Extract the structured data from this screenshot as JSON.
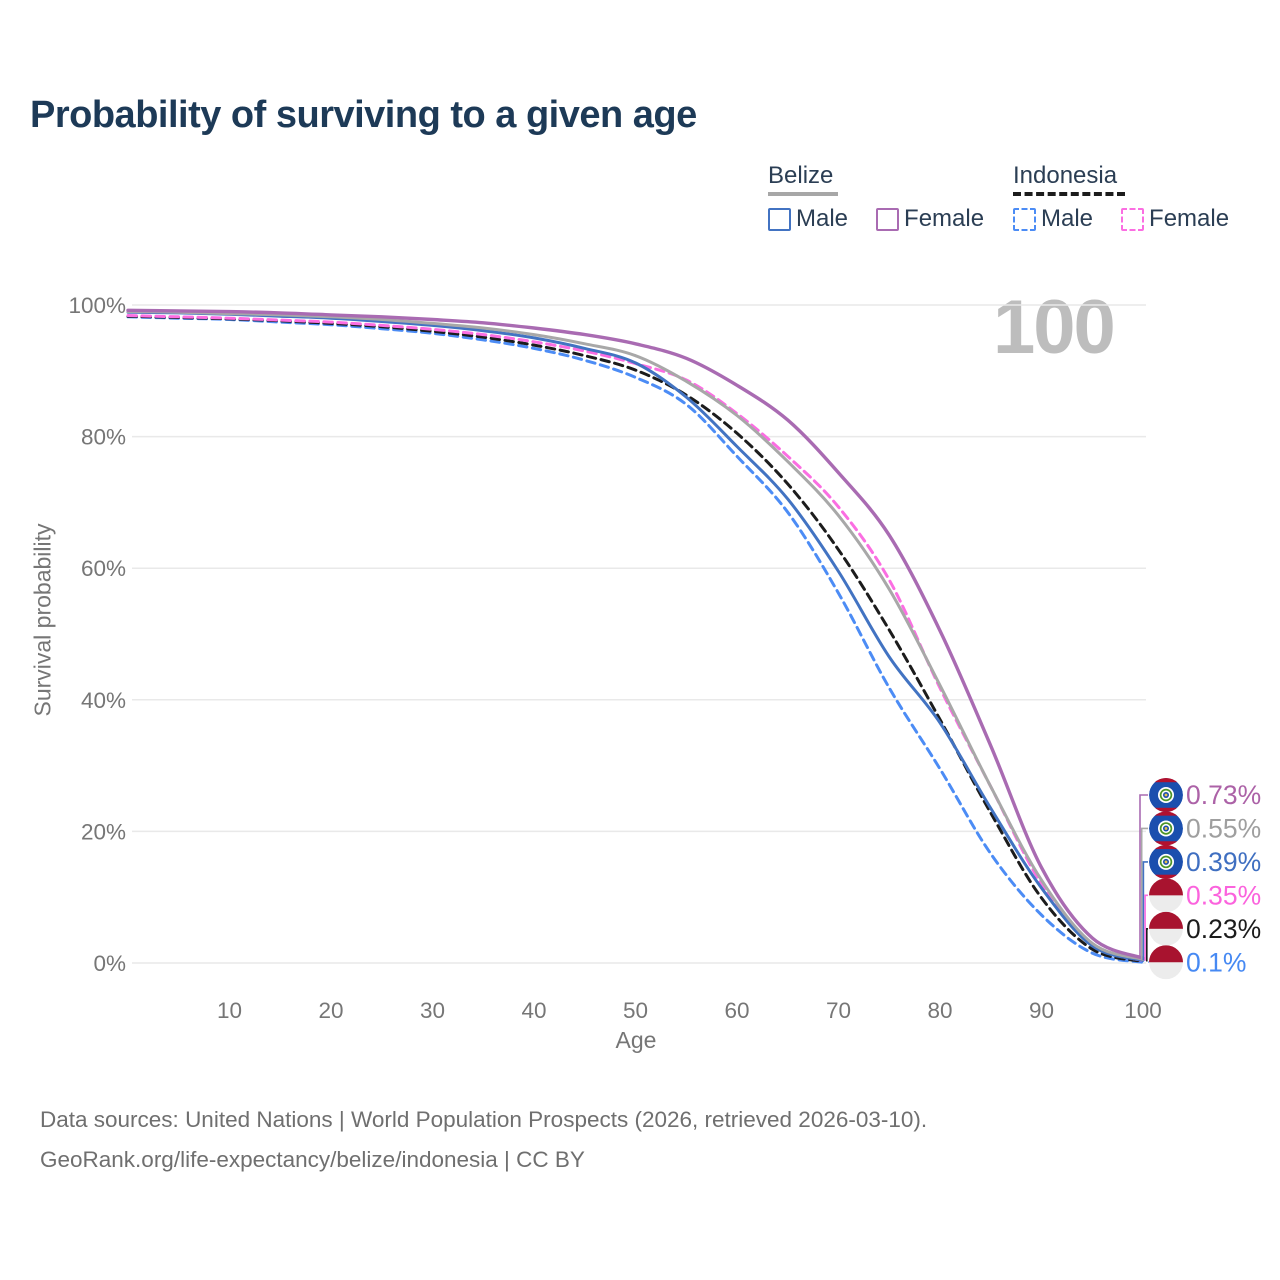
{
  "title": "Probability of surviving to a given age",
  "watermark": {
    "text": "100"
  },
  "colors": {
    "title": "#1d3a57",
    "legend": "#2b3e54",
    "ink": "#1c1c1c",
    "axis": "#767676",
    "grid": "#e9e9e9",
    "watermark": "#bdbdbd",
    "footer": "#6f6f6f",
    "belize_flag_blue": "#1b4fae",
    "belize_flag_red": "#b3112e",
    "belize_flag_green": "#4c9427",
    "indonesia_flag_red": "#a8132f",
    "indonesia_flag_white": "#ececec"
  },
  "legend": {
    "groups": [
      {
        "name": "Belize",
        "line_style": "solid",
        "underline_color": "#a7a7a7",
        "items": [
          {
            "label": "Male",
            "color": "#4273c2",
            "dashed": false
          },
          {
            "label": "Female",
            "color": "#a96bb2",
            "dashed": false
          }
        ]
      },
      {
        "name": "Indonesia",
        "line_style": "dashed",
        "underline_color": "#1c1c1c",
        "items": [
          {
            "label": "Male",
            "color": "#4c8cf5",
            "dashed": true
          },
          {
            "label": "Female",
            "color": "#fb6ee2",
            "dashed": true
          }
        ]
      }
    ]
  },
  "chart_data": {
    "type": "line",
    "title": "Probability of surviving to a given age",
    "xlabel": "Age",
    "ylabel": "Survival probability",
    "xlim": [
      0,
      100
    ],
    "ylim": [
      0,
      100
    ],
    "grid": "horizontal",
    "x_ticks": [
      10,
      20,
      30,
      40,
      50,
      60,
      70,
      80,
      90,
      100
    ],
    "y_ticks_pct": [
      0,
      20,
      40,
      60,
      80,
      100
    ],
    "ages": [
      0,
      5,
      10,
      15,
      20,
      25,
      30,
      35,
      40,
      45,
      50,
      55,
      60,
      65,
      70,
      75,
      80,
      85,
      90,
      95,
      100
    ],
    "series": [
      {
        "name": "Belize Female",
        "country": "Belize",
        "sex": "Female",
        "color": "#a96bb2",
        "dashed": false,
        "width": 3.4,
        "end_label": "0.73%",
        "label_color": "#ac62a7",
        "label_slot": 0,
        "values": [
          99.2,
          99.1,
          99.0,
          98.8,
          98.5,
          98.2,
          97.8,
          97.3,
          96.5,
          95.5,
          94.1,
          91.9,
          87.8,
          82.5,
          74.5,
          65.0,
          50.5,
          33.0,
          14.5,
          3.8,
          0.73
        ]
      },
      {
        "name": "Belize All",
        "country": "Belize",
        "sex": "All",
        "color": "#a8a8a8",
        "dashed": false,
        "width": 3,
        "end_label": "0.55%",
        "label_color": "#9f9f9f",
        "label_slot": 1,
        "values": [
          99.0,
          98.9,
          98.7,
          98.5,
          98.2,
          97.8,
          97.2,
          96.5,
          95.5,
          94.1,
          92.3,
          88.4,
          83.2,
          76.2,
          68.0,
          56.8,
          42.2,
          26.8,
          12.6,
          3.0,
          0.55
        ]
      },
      {
        "name": "Belize Male",
        "country": "Belize",
        "sex": "Male",
        "color": "#4273c2",
        "dashed": false,
        "width": 3,
        "end_label": "0.39%",
        "label_color": "#3f6fc1",
        "label_slot": 2,
        "values": [
          98.9,
          98.8,
          98.6,
          98.3,
          98.0,
          97.5,
          96.9,
          96.1,
          95.0,
          93.4,
          91.2,
          86.0,
          78.5,
          70.5,
          59.5,
          46.5,
          36.5,
          23.5,
          11.4,
          2.6,
          0.39
        ]
      },
      {
        "name": "Indonesia Female",
        "country": "Indonesia",
        "sex": "Female",
        "color": "#fb6ee2",
        "dashed": true,
        "width": 3,
        "end_label": "0.35%",
        "label_color": "#fb63dd",
        "label_slot": 3,
        "values": [
          98.4,
          98.2,
          98.0,
          97.7,
          97.4,
          96.9,
          96.3,
          95.5,
          94.4,
          93.0,
          91.1,
          88.6,
          83.5,
          77.0,
          69.3,
          58.2,
          41.8,
          26.8,
          12.0,
          2.8,
          0.35
        ]
      },
      {
        "name": "Indonesia All",
        "country": "Indonesia",
        "sex": "All",
        "color": "#1c1c1c",
        "dashed": true,
        "width": 3,
        "end_label": "0.23%",
        "label_color": "#1c1c1c",
        "label_slot": 4,
        "values": [
          98.3,
          98.1,
          97.9,
          97.6,
          97.2,
          96.7,
          96.0,
          95.1,
          93.9,
          92.3,
          90.1,
          86.3,
          80.5,
          72.8,
          62.8,
          50.6,
          37.0,
          22.8,
          9.9,
          2.1,
          0.23
        ]
      },
      {
        "name": "Indonesia Male",
        "country": "Indonesia",
        "sex": "Male",
        "color": "#4c8cf5",
        "dashed": true,
        "width": 3,
        "end_label": "0.1%",
        "label_color": "#4689f3",
        "label_slot": 5,
        "values": [
          98.2,
          98.0,
          97.8,
          97.4,
          97.0,
          96.4,
          95.7,
          94.7,
          93.4,
          91.6,
          89.0,
          84.9,
          77.0,
          68.5,
          56.2,
          41.8,
          29.5,
          16.6,
          7.3,
          1.5,
          0.1
        ]
      }
    ]
  },
  "footer": {
    "line1": "Data sources: United Nations | World Population Prospects (2026, retrieved 2026-03-10).",
    "line2": "GeoRank.org/life-expectancy/belize/indonesia | CC BY"
  }
}
